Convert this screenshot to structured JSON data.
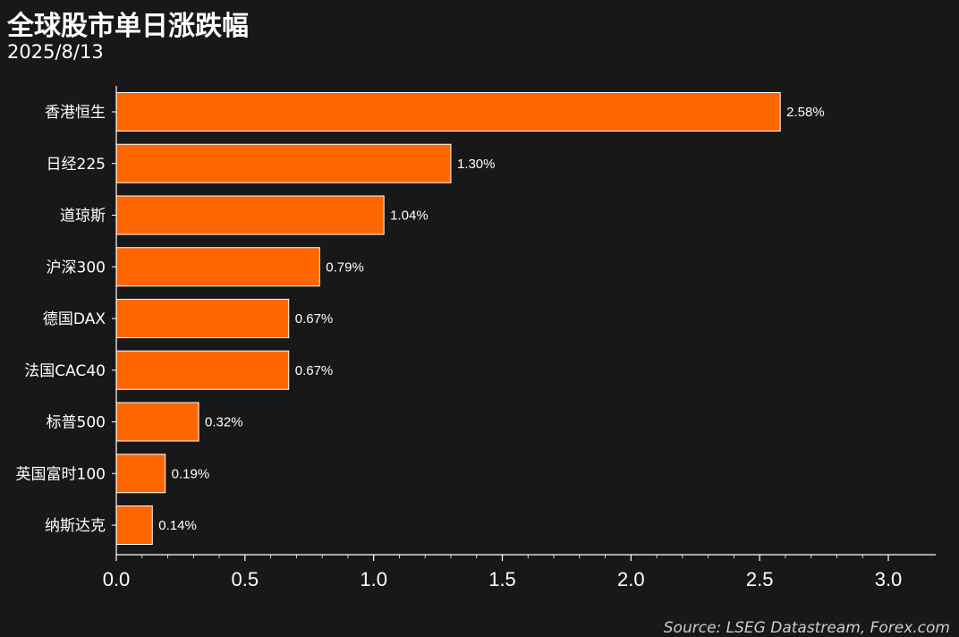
{
  "chart_data": {
    "type": "bar",
    "orientation": "horizontal",
    "title": "全球股市单日涨跌幅",
    "subtitle": "2025/8/13",
    "categories": [
      "香港恒生",
      "日经225",
      "道琼斯",
      "沪深300",
      "德国DAX",
      "法国CAC40",
      "标普500",
      "英国富时100",
      "纳斯达克"
    ],
    "values": [
      2.58,
      1.3,
      1.04,
      0.79,
      0.67,
      0.67,
      0.32,
      0.19,
      0.14
    ],
    "value_labels": [
      "2.58%",
      "1.30%",
      "1.04%",
      "0.79%",
      "0.67%",
      "0.67%",
      "0.32%",
      "0.19%",
      "0.14%"
    ],
    "xlim": [
      0,
      3.0
    ],
    "xticks": [
      0.0,
      0.5,
      1.0,
      1.5,
      2.0,
      2.5,
      3.0
    ],
    "xtick_labels": [
      "0.0",
      "0.5",
      "1.0",
      "1.5",
      "2.0",
      "2.5",
      "3.0"
    ],
    "grid": false,
    "legend": "none",
    "source": "Source: LSEG Datastream, Forex.com",
    "colors": {
      "bar": "#ff6600",
      "bar_edge": "#ffffff",
      "background": "#181818",
      "text": "#ffffff",
      "axis": "#ffffff"
    }
  }
}
